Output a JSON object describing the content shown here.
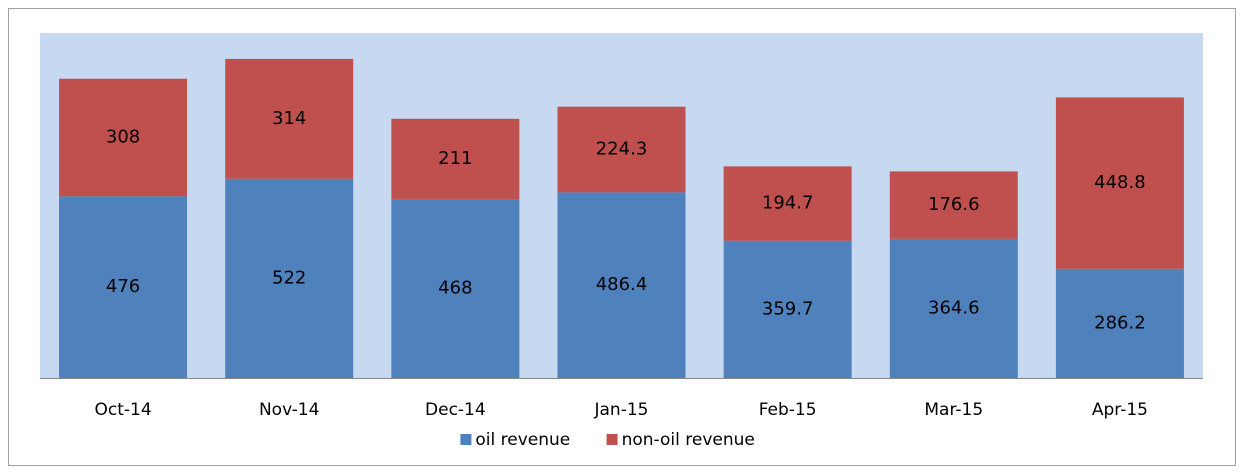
{
  "chart_data": {
    "type": "bar",
    "stacked": true,
    "categories": [
      "Oct-14",
      "Nov-14",
      "Dec-14",
      "Jan-15",
      "Feb-15",
      "Mar-15",
      "Apr-15"
    ],
    "series": [
      {
        "name": "oil revenue",
        "color": "#4f81bd",
        "values": [
          476,
          522,
          468,
          486.4,
          359.7,
          364.6,
          286.2
        ]
      },
      {
        "name": "non-oil revenue",
        "color": "#c0504d",
        "values": [
          308,
          314,
          211,
          224.3,
          194.7,
          176.6,
          448.8
        ]
      }
    ],
    "legend": "bottom"
  }
}
